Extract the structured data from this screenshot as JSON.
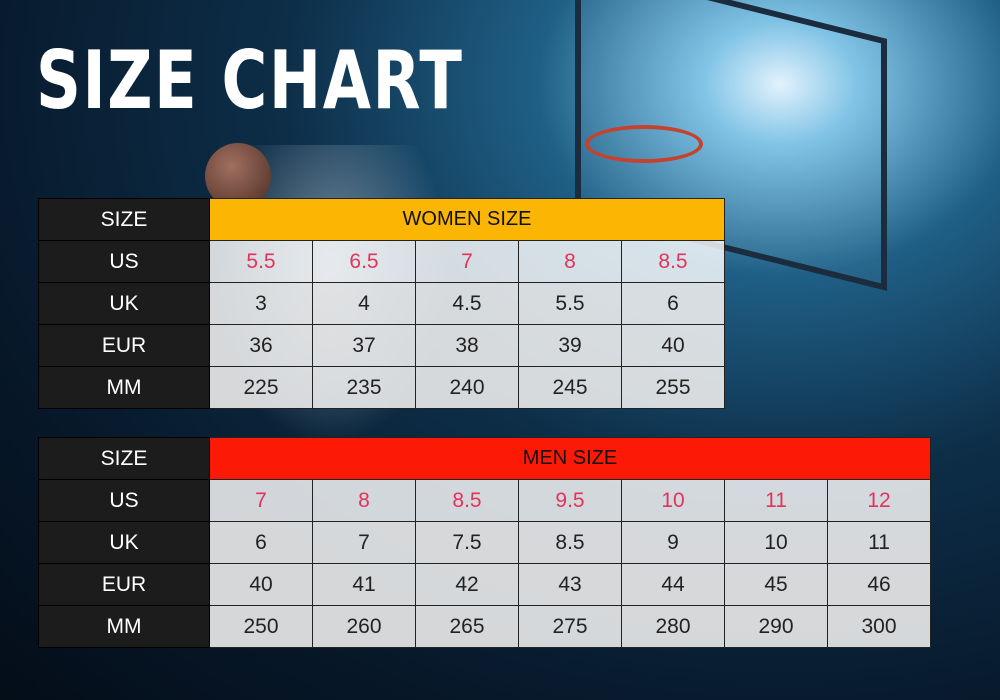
{
  "title": "SIZE CHART",
  "colors": {
    "women_header": "#fbb603",
    "men_header": "#fc1a06",
    "us_values": "#e2345a",
    "label_column": "#1c1c1c"
  },
  "women": {
    "size_label": "SIZE",
    "header": "WOMEN SIZE",
    "rows": [
      {
        "label": "US",
        "values": [
          "5.5",
          "6.5",
          "7",
          "8",
          "8.5"
        ]
      },
      {
        "label": "UK",
        "values": [
          "3",
          "4",
          "4.5",
          "5.5",
          "6"
        ]
      },
      {
        "label": "EUR",
        "values": [
          "36",
          "37",
          "38",
          "39",
          "40"
        ]
      },
      {
        "label": "MM",
        "values": [
          "225",
          "235",
          "240",
          "245",
          "255"
        ]
      }
    ]
  },
  "men": {
    "size_label": "SIZE",
    "header": "MEN SIZE",
    "rows": [
      {
        "label": "US",
        "values": [
          "7",
          "8",
          "8.5",
          "9.5",
          "10",
          "11",
          "12"
        ]
      },
      {
        "label": "UK",
        "values": [
          "6",
          "7",
          "7.5",
          "8.5",
          "9",
          "10",
          "11"
        ]
      },
      {
        "label": "EUR",
        "values": [
          "40",
          "41",
          "42",
          "43",
          "44",
          "45",
          "46"
        ]
      },
      {
        "label": "MM",
        "values": [
          "250",
          "260",
          "265",
          "275",
          "280",
          "290",
          "300"
        ]
      }
    ]
  }
}
